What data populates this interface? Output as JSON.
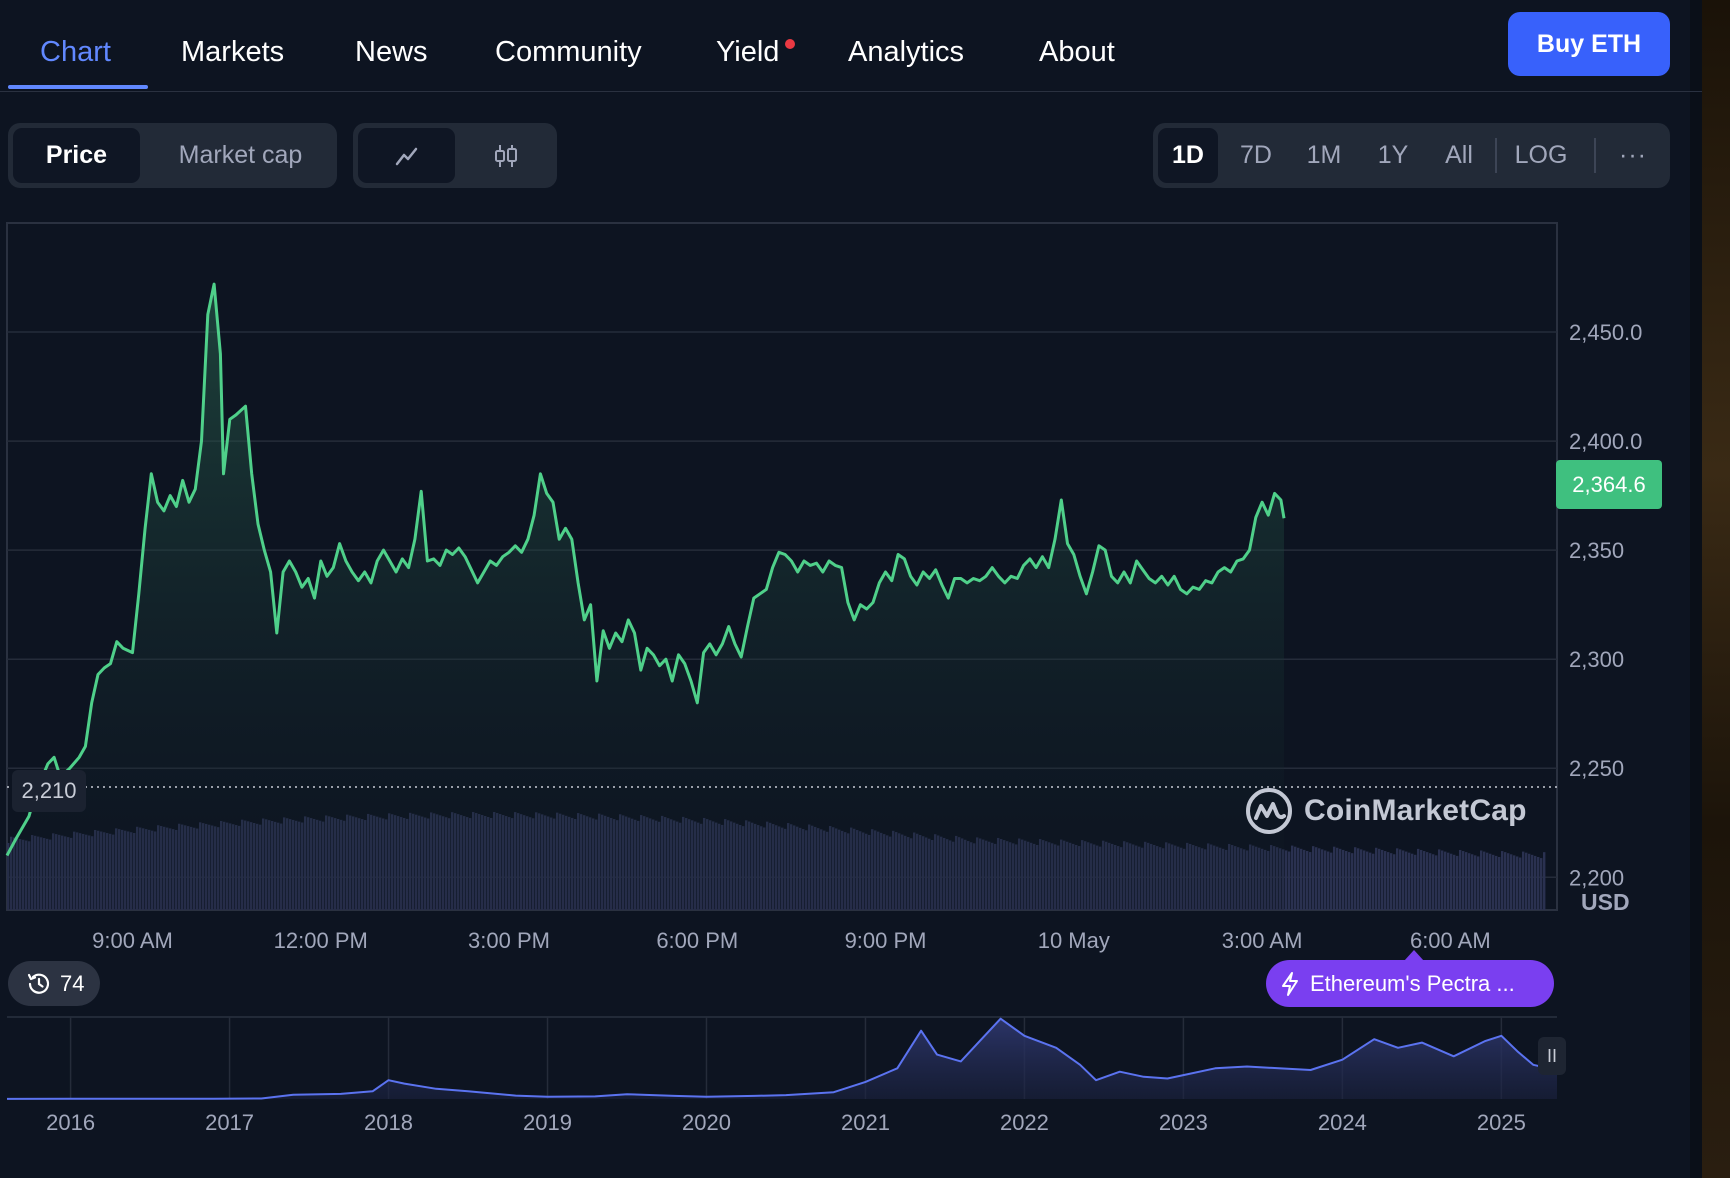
{
  "nav": {
    "tabs": [
      {
        "label": "Chart",
        "active": true
      },
      {
        "label": "Markets"
      },
      {
        "label": "News"
      },
      {
        "label": "Community"
      },
      {
        "label": "Yield",
        "has_dot": true
      },
      {
        "label": "Analytics"
      },
      {
        "label": "About"
      }
    ],
    "buy_button": "Buy ETH"
  },
  "toolbar": {
    "metric_tabs": [
      "Price",
      "Market cap"
    ],
    "metric_selected": "Price",
    "chart_type_icons": [
      "line-chart-icon",
      "candlestick-icon"
    ],
    "chart_type_selected": "line-chart-icon",
    "ranges": [
      "1D",
      "7D",
      "1M",
      "1Y",
      "All"
    ],
    "range_selected": "1D",
    "log_label": "LOG",
    "more_label": "···"
  },
  "colors": {
    "accent": "#6188ff",
    "price_line": "#4fd08a",
    "buy_button": "#3861fb",
    "news_pill": "#7a3ff0",
    "volume": "#2a3150",
    "overview_line": "#5b73f0"
  },
  "chart_data": [
    {
      "type": "area",
      "name": "price",
      "currency_label": "USD",
      "y_ticks": [
        "2,450.0",
        "2,400.0",
        "2,350",
        "2,300",
        "2,250",
        "2,200"
      ],
      "y_tick_values": [
        2450,
        2400,
        2350,
        2300,
        2250,
        2200
      ],
      "ylim": [
        2185,
        2500
      ],
      "x_tick_labels": [
        "9:00 AM",
        "12:00 PM",
        "3:00 PM",
        "6:00 PM",
        "9:00 PM",
        "10 May",
        "3:00 AM",
        "6:00 AM"
      ],
      "x_tick_hours": [
        9,
        12,
        15,
        18,
        21,
        24,
        27,
        30
      ],
      "x_range_hours": [
        7.0,
        31.7
      ],
      "current_price": "2,364.6",
      "low_label": "2,210",
      "low_value": 2210,
      "points": [
        [
          7.0,
          2210
        ],
        [
          7.15,
          2218
        ],
        [
          7.35,
          2228
        ],
        [
          7.45,
          2238
        ],
        [
          7.55,
          2245
        ],
        [
          7.65,
          2252
        ],
        [
          7.75,
          2255
        ],
        [
          7.85,
          2246
        ],
        [
          8.0,
          2250
        ],
        [
          8.15,
          2255
        ],
        [
          8.25,
          2260
        ],
        [
          8.35,
          2280
        ],
        [
          8.45,
          2293
        ],
        [
          8.55,
          2296
        ],
        [
          8.65,
          2298
        ],
        [
          8.75,
          2308
        ],
        [
          8.85,
          2305
        ],
        [
          9.0,
          2303
        ],
        [
          9.1,
          2330
        ],
        [
          9.2,
          2360
        ],
        [
          9.3,
          2385
        ],
        [
          9.4,
          2372
        ],
        [
          9.5,
          2368
        ],
        [
          9.6,
          2375
        ],
        [
          9.7,
          2370
        ],
        [
          9.8,
          2382
        ],
        [
          9.9,
          2372
        ],
        [
          10.0,
          2378
        ],
        [
          10.1,
          2400
        ],
        [
          10.2,
          2458
        ],
        [
          10.3,
          2472
        ],
        [
          10.4,
          2440
        ],
        [
          10.45,
          2385
        ],
        [
          10.55,
          2410
        ],
        [
          10.65,
          2412
        ],
        [
          10.8,
          2416
        ],
        [
          10.9,
          2385
        ],
        [
          11.0,
          2362
        ],
        [
          11.1,
          2350
        ],
        [
          11.2,
          2340
        ],
        [
          11.3,
          2312
        ],
        [
          11.4,
          2340
        ],
        [
          11.5,
          2345
        ],
        [
          11.6,
          2340
        ],
        [
          11.7,
          2333
        ],
        [
          11.8,
          2337
        ],
        [
          11.9,
          2328
        ],
        [
          12.0,
          2345
        ],
        [
          12.1,
          2338
        ],
        [
          12.2,
          2342
        ],
        [
          12.3,
          2353
        ],
        [
          12.4,
          2345
        ],
        [
          12.5,
          2340
        ],
        [
          12.6,
          2336
        ],
        [
          12.7,
          2340
        ],
        [
          12.8,
          2335
        ],
        [
          12.9,
          2345
        ],
        [
          13.0,
          2350
        ],
        [
          13.1,
          2345
        ],
        [
          13.2,
          2340
        ],
        [
          13.3,
          2346
        ],
        [
          13.4,
          2342
        ],
        [
          13.5,
          2355
        ],
        [
          13.6,
          2377
        ],
        [
          13.7,
          2345
        ],
        [
          13.8,
          2346
        ],
        [
          13.9,
          2343
        ],
        [
          14.0,
          2350
        ],
        [
          14.1,
          2348
        ],
        [
          14.2,
          2351
        ],
        [
          14.3,
          2347
        ],
        [
          14.4,
          2341
        ],
        [
          14.5,
          2335
        ],
        [
          14.6,
          2340
        ],
        [
          14.7,
          2345
        ],
        [
          14.8,
          2343
        ],
        [
          14.9,
          2347
        ],
        [
          15.0,
          2349
        ],
        [
          15.1,
          2352
        ],
        [
          15.2,
          2349
        ],
        [
          15.3,
          2355
        ],
        [
          15.4,
          2366
        ],
        [
          15.5,
          2385
        ],
        [
          15.6,
          2376
        ],
        [
          15.7,
          2372
        ],
        [
          15.8,
          2355
        ],
        [
          15.9,
          2360
        ],
        [
          16.0,
          2355
        ],
        [
          16.1,
          2335
        ],
        [
          16.2,
          2318
        ],
        [
          16.3,
          2325
        ],
        [
          16.4,
          2290
        ],
        [
          16.5,
          2313
        ],
        [
          16.6,
          2305
        ],
        [
          16.7,
          2312
        ],
        [
          16.8,
          2308
        ],
        [
          16.9,
          2318
        ],
        [
          17.0,
          2312
        ],
        [
          17.1,
          2295
        ],
        [
          17.2,
          2305
        ],
        [
          17.3,
          2302
        ],
        [
          17.4,
          2297
        ],
        [
          17.5,
          2300
        ],
        [
          17.6,
          2290
        ],
        [
          17.7,
          2302
        ],
        [
          17.8,
          2298
        ],
        [
          17.9,
          2290
        ],
        [
          18.0,
          2280
        ],
        [
          18.1,
          2303
        ],
        [
          18.2,
          2307
        ],
        [
          18.3,
          2302
        ],
        [
          18.4,
          2307
        ],
        [
          18.5,
          2315
        ],
        [
          18.6,
          2307
        ],
        [
          18.7,
          2301
        ],
        [
          18.8,
          2315
        ],
        [
          18.9,
          2328
        ],
        [
          19.0,
          2330
        ],
        [
          19.1,
          2332
        ],
        [
          19.2,
          2342
        ],
        [
          19.3,
          2349
        ],
        [
          19.4,
          2348
        ],
        [
          19.5,
          2345
        ],
        [
          19.6,
          2340
        ],
        [
          19.7,
          2345
        ],
        [
          19.8,
          2343
        ],
        [
          19.9,
          2344
        ],
        [
          20.0,
          2340
        ],
        [
          20.1,
          2345
        ],
        [
          20.2,
          2343
        ],
        [
          20.3,
          2342
        ],
        [
          20.4,
          2326
        ],
        [
          20.5,
          2318
        ],
        [
          20.6,
          2325
        ],
        [
          20.7,
          2323
        ],
        [
          20.8,
          2326
        ],
        [
          20.9,
          2335
        ],
        [
          21.0,
          2340
        ],
        [
          21.1,
          2336
        ],
        [
          21.2,
          2348
        ],
        [
          21.3,
          2346
        ],
        [
          21.4,
          2338
        ],
        [
          21.5,
          2334
        ],
        [
          21.6,
          2340
        ],
        [
          21.7,
          2337
        ],
        [
          21.8,
          2341
        ],
        [
          21.9,
          2334
        ],
        [
          22.0,
          2328
        ],
        [
          22.1,
          2337
        ],
        [
          22.2,
          2337
        ],
        [
          22.3,
          2335
        ],
        [
          22.4,
          2337
        ],
        [
          22.5,
          2336
        ],
        [
          22.6,
          2338
        ],
        [
          22.7,
          2342
        ],
        [
          22.8,
          2338
        ],
        [
          22.9,
          2335
        ],
        [
          23.0,
          2338
        ],
        [
          23.1,
          2337
        ],
        [
          23.2,
          2343
        ],
        [
          23.3,
          2346
        ],
        [
          23.4,
          2342
        ],
        [
          23.5,
          2347
        ],
        [
          23.6,
          2342
        ],
        [
          23.7,
          2355
        ],
        [
          23.8,
          2373
        ],
        [
          23.9,
          2353
        ],
        [
          24.0,
          2348
        ],
        [
          24.1,
          2338
        ],
        [
          24.2,
          2330
        ],
        [
          24.3,
          2340
        ],
        [
          24.4,
          2352
        ],
        [
          24.5,
          2350
        ],
        [
          24.6,
          2338
        ],
        [
          24.7,
          2335
        ],
        [
          24.8,
          2340
        ],
        [
          24.9,
          2335
        ],
        [
          25.0,
          2345
        ],
        [
          25.1,
          2341
        ],
        [
          25.2,
          2337
        ],
        [
          25.3,
          2335
        ],
        [
          25.4,
          2338
        ],
        [
          25.5,
          2334
        ],
        [
          25.6,
          2338
        ],
        [
          25.7,
          2332
        ],
        [
          25.8,
          2330
        ],
        [
          25.9,
          2333
        ],
        [
          26.0,
          2332
        ],
        [
          26.1,
          2336
        ],
        [
          26.2,
          2335
        ],
        [
          26.3,
          2340
        ],
        [
          26.4,
          2342
        ],
        [
          26.5,
          2340
        ],
        [
          26.6,
          2345
        ],
        [
          26.7,
          2346
        ],
        [
          26.8,
          2350
        ],
        [
          26.9,
          2365
        ],
        [
          27.0,
          2372
        ],
        [
          27.1,
          2366
        ],
        [
          27.2,
          2376
        ],
        [
          27.3,
          2373
        ],
        [
          27.35,
          2364.6
        ]
      ]
    },
    {
      "type": "area",
      "name": "overview",
      "x_tick_labels": [
        "2016",
        "2017",
        "2018",
        "2019",
        "2020",
        "2021",
        "2022",
        "2023",
        "2024",
        "2025"
      ],
      "x_tick_years": [
        2016,
        2017,
        2018,
        2019,
        2020,
        2021,
        2022,
        2023,
        2024,
        2025
      ],
      "x_range": [
        2015.6,
        2025.35
      ],
      "ylim": [
        0,
        4800
      ],
      "points": [
        [
          2015.6,
          8
        ],
        [
          2016.0,
          9
        ],
        [
          2016.5,
          12
        ],
        [
          2016.9,
          10
        ],
        [
          2017.2,
          30
        ],
        [
          2017.4,
          250
        ],
        [
          2017.7,
          300
        ],
        [
          2017.9,
          450
        ],
        [
          2018.0,
          1100
        ],
        [
          2018.1,
          900
        ],
        [
          2018.3,
          600
        ],
        [
          2018.5,
          450
        ],
        [
          2018.8,
          200
        ],
        [
          2019.0,
          130
        ],
        [
          2019.3,
          150
        ],
        [
          2019.5,
          280
        ],
        [
          2019.8,
          180
        ],
        [
          2020.0,
          130
        ],
        [
          2020.3,
          180
        ],
        [
          2020.5,
          230
        ],
        [
          2020.8,
          400
        ],
        [
          2021.0,
          1000
        ],
        [
          2021.2,
          1800
        ],
        [
          2021.35,
          4000
        ],
        [
          2021.45,
          2600
        ],
        [
          2021.6,
          2200
        ],
        [
          2021.7,
          3200
        ],
        [
          2021.85,
          4700
        ],
        [
          2022.0,
          3700
        ],
        [
          2022.2,
          3000
        ],
        [
          2022.35,
          2000
        ],
        [
          2022.45,
          1100
        ],
        [
          2022.6,
          1600
        ],
        [
          2022.75,
          1300
        ],
        [
          2022.9,
          1200
        ],
        [
          2023.0,
          1400
        ],
        [
          2023.2,
          1800
        ],
        [
          2023.4,
          1900
        ],
        [
          2023.6,
          1800
        ],
        [
          2023.8,
          1700
        ],
        [
          2024.0,
          2300
        ],
        [
          2024.2,
          3500
        ],
        [
          2024.35,
          3000
        ],
        [
          2024.5,
          3300
        ],
        [
          2024.7,
          2500
        ],
        [
          2024.9,
          3400
        ],
        [
          2025.0,
          3700
        ],
        [
          2025.1,
          2800
        ],
        [
          2025.2,
          2000
        ],
        [
          2025.3,
          1800
        ],
        [
          2025.35,
          1600
        ]
      ]
    }
  ],
  "overlays": {
    "brand_watermark": "CoinMarketCap",
    "history_count": "74",
    "news_pill_text": "Ethereum's Pectra ...",
    "pause_label": "II"
  }
}
